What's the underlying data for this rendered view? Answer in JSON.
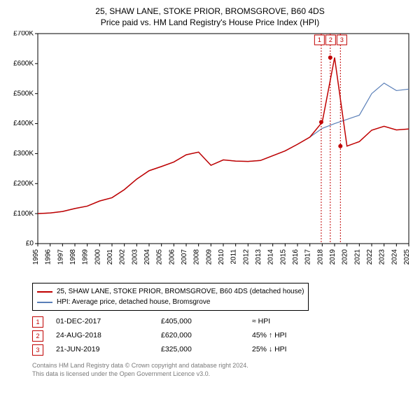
{
  "title_line1": "25, SHAW LANE, STOKE PRIOR, BROMSGROVE, B60 4DS",
  "title_line2": "Price paid vs. HM Land Registry's House Price Index (HPI)",
  "chart": {
    "type": "line",
    "background_color": "#ffffff",
    "plot_border_color": "#000000",
    "x_years": [
      1995,
      1996,
      1997,
      1998,
      1999,
      2000,
      2001,
      2002,
      2003,
      2004,
      2005,
      2006,
      2007,
      2008,
      2009,
      2010,
      2011,
      2012,
      2013,
      2014,
      2015,
      2016,
      2017,
      2018,
      2019,
      2020,
      2021,
      2022,
      2023,
      2024,
      2025
    ],
    "ylim": [
      0,
      700000
    ],
    "ytick_step": 100000,
    "ytick_labels": [
      "£0",
      "£100K",
      "£200K",
      "£300K",
      "£400K",
      "£500K",
      "£600K",
      "£700K"
    ],
    "series_property": {
      "label": "25, SHAW LANE, STOKE PRIOR, BROMSGROVE, B60 4DS (detached house)",
      "color": "#c00000",
      "width": 1.5,
      "y": [
        100000,
        102000,
        107000,
        117000,
        125000,
        142000,
        153000,
        180000,
        215000,
        243000,
        257000,
        272000,
        296000,
        305000,
        261000,
        279000,
        275000,
        274000,
        277000,
        293000,
        309000,
        331000,
        355000,
        405000,
        620000,
        325000,
        340000,
        378000,
        391000,
        379000,
        382000
      ]
    },
    "series_hpi": {
      "label": "HPI: Average price, detached house, Bromsgrove",
      "color": "#5a7fb8",
      "width": 1.2,
      "y": [
        100000,
        102000,
        107000,
        117000,
        125000,
        142000,
        153000,
        180000,
        215000,
        243000,
        257000,
        272000,
        296000,
        305000,
        261000,
        279000,
        275000,
        274000,
        277000,
        293000,
        309000,
        331000,
        355000,
        384000,
        400000,
        414000,
        428000,
        500000,
        535000,
        510000,
        515000
      ]
    },
    "markers": [
      {
        "n": "1",
        "year_fraction": 2017.92,
        "price": 405000
      },
      {
        "n": "2",
        "year_fraction": 2018.65,
        "price": 620000
      },
      {
        "n": "3",
        "year_fraction": 2019.47,
        "price": 325000
      }
    ]
  },
  "legend": {
    "items": [
      {
        "color": "#c00000",
        "label": "25, SHAW LANE, STOKE PRIOR, BROMSGROVE, B60 4DS (detached house)"
      },
      {
        "color": "#5a7fb8",
        "label": "HPI: Average price, detached house, Bromsgrove"
      }
    ]
  },
  "marker_rows": [
    {
      "n": "1",
      "date": "01-DEC-2017",
      "price": "£405,000",
      "rel": "≈ HPI"
    },
    {
      "n": "2",
      "date": "24-AUG-2018",
      "price": "£620,000",
      "rel": "45% ↑ HPI"
    },
    {
      "n": "3",
      "date": "21-JUN-2019",
      "price": "£325,000",
      "rel": "25% ↓ HPI"
    }
  ],
  "footer_line1": "Contains HM Land Registry data © Crown copyright and database right 2024.",
  "footer_line2": "This data is licensed under the Open Government Licence v3.0."
}
